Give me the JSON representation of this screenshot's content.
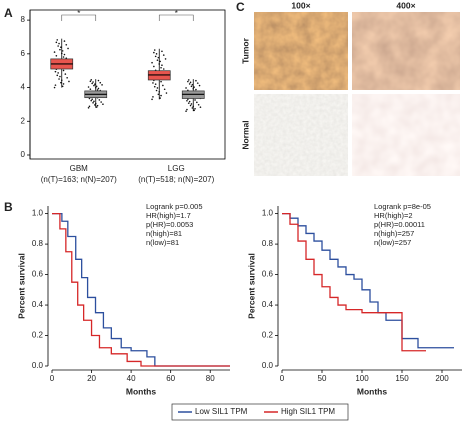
{
  "panels": {
    "labels": [
      "A",
      "B",
      "C"
    ]
  },
  "images": {
    "columns": [
      "100×",
      "400×"
    ],
    "rows": [
      "Tumor",
      "Normal"
    ]
  },
  "chart_data": [
    {
      "type": "box",
      "categories": [
        "GBM",
        "LGG"
      ],
      "sublabels": [
        "(n(T)=163; n(N)=207)",
        "(n(T)=518; n(N)=207)"
      ],
      "annotations": [
        "*",
        "*"
      ],
      "ylim": [
        0,
        8.6
      ],
      "yticks": [
        0,
        2,
        4,
        6,
        8
      ],
      "series": [
        {
          "color": "#e8554e",
          "whisker_low": [
            4.0,
            3.3
          ],
          "q1": [
            5.1,
            4.45
          ],
          "median": [
            5.4,
            4.75
          ],
          "q3": [
            5.7,
            5.0
          ],
          "whisker_high": [
            6.9,
            6.3
          ]
        },
        {
          "color": "#9a9a9a",
          "whisker_low": [
            2.8,
            2.6
          ],
          "q1": [
            3.4,
            3.35
          ],
          "median": [
            3.6,
            3.6
          ],
          "q3": [
            3.8,
            3.8
          ],
          "whisker_high": [
            4.5,
            4.5
          ]
        }
      ]
    },
    {
      "type": "km",
      "step": "post",
      "xlabel": "Months",
      "ylabel": "Percent survival",
      "xlim": [
        0,
        90
      ],
      "xticks": [
        0,
        20,
        40,
        60,
        80
      ],
      "ylim": [
        0,
        1.05
      ],
      "yticks": [
        {
          "value": 0,
          "label": "0.0"
        },
        0.2,
        0.4,
        0.6,
        0.8,
        {
          "value": 1,
          "label": "1.0"
        }
      ],
      "stats": [
        "Logrank p=0.005",
        "HR(high)=1.7",
        "p(HR)=0.0053",
        "n(high)=81",
        "n(low)=81"
      ],
      "series": [
        {
          "name": "Low SIL1 TPM",
          "color": "#2c4f9e",
          "x": [
            0,
            5,
            8,
            12,
            15,
            18,
            22,
            26,
            30,
            35,
            40,
            48,
            52,
            90
          ],
          "values": [
            1,
            0.95,
            0.85,
            0.7,
            0.58,
            0.45,
            0.35,
            0.25,
            0.18,
            0.12,
            0.1,
            0.06,
            0,
            0
          ]
        },
        {
          "name": "High SIL1 TPM",
          "color": "#d62728",
          "x": [
            0,
            4,
            7,
            10,
            13,
            16,
            20,
            24,
            30,
            38,
            45,
            90
          ],
          "values": [
            1,
            0.9,
            0.75,
            0.55,
            0.4,
            0.3,
            0.2,
            0.12,
            0.08,
            0.03,
            0,
            0
          ]
        }
      ]
    },
    {
      "type": "km",
      "step": "post",
      "xlabel": "Months",
      "ylabel": "Percent survival",
      "xlim": [
        0,
        225
      ],
      "xticks": [
        0,
        50,
        100,
        150,
        200
      ],
      "ylim": [
        0,
        1.05
      ],
      "yticks": [
        {
          "value": 0,
          "label": "0.0"
        },
        0.2,
        0.4,
        0.6,
        0.8,
        {
          "value": 1,
          "label": "1.0"
        }
      ],
      "stats": [
        "Logrank p=8e-05",
        "HR(high)=2",
        "p(HR)=0.00011",
        "n(high)=257",
        "n(low)=257"
      ],
      "series": [
        {
          "color": "#2c4f9e",
          "x": [
            0,
            10,
            20,
            30,
            40,
            50,
            60,
            70,
            80,
            90,
            100,
            110,
            120,
            130,
            150,
            170,
            215
          ],
          "values": [
            1,
            0.97,
            0.92,
            0.87,
            0.82,
            0.76,
            0.7,
            0.65,
            0.6,
            0.57,
            0.5,
            0.42,
            0.35,
            0.3,
            0.18,
            0.12,
            0.12
          ]
        },
        {
          "color": "#d62728",
          "x": [
            0,
            10,
            20,
            30,
            40,
            50,
            60,
            70,
            80,
            100,
            140,
            150,
            180
          ],
          "values": [
            1,
            0.93,
            0.82,
            0.7,
            0.6,
            0.52,
            0.45,
            0.4,
            0.37,
            0.35,
            0.35,
            0.1,
            0.1
          ]
        }
      ]
    }
  ]
}
